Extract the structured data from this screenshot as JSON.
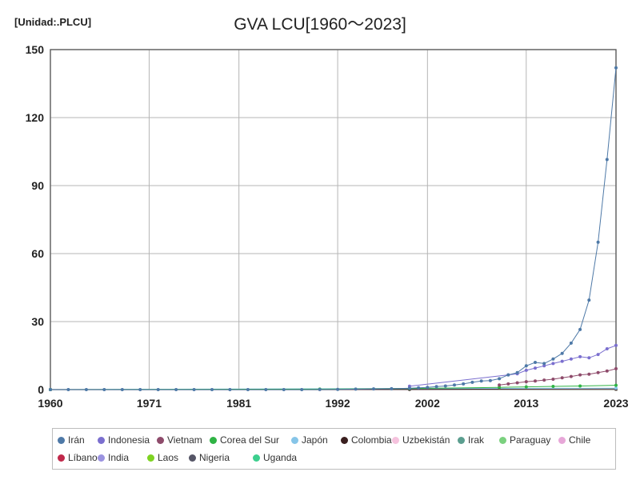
{
  "unit_label": "[Unidad:.PLCU]",
  "chart_data": {
    "type": "line",
    "title": "GVA LCU[1960～2023]",
    "xlabel": "",
    "ylabel": "",
    "xlim": [
      1960,
      2023
    ],
    "ylim": [
      0,
      150
    ],
    "x_ticks": [
      "1960",
      "1971",
      "1981",
      "1992",
      "2002",
      "2013",
      "2023"
    ],
    "y_ticks": [
      "0",
      "30",
      "60",
      "90",
      "120",
      "150"
    ],
    "grid": true,
    "legend_position": "bottom",
    "series": [
      {
        "name": "Irán",
        "color": "#4e79a7",
        "x": [
          1960,
          1962,
          1964,
          1966,
          1968,
          1970,
          1972,
          1974,
          1976,
          1978,
          1980,
          1982,
          1984,
          1986,
          1988,
          1990,
          1992,
          1994,
          1996,
          1998,
          2000,
          2001,
          2002,
          2003,
          2004,
          2005,
          2006,
          2007,
          2008,
          2009,
          2010,
          2011,
          2012,
          2013,
          2014,
          2015,
          2016,
          2017,
          2018,
          2019,
          2020,
          2021,
          2022,
          2023
        ],
        "values": [
          0,
          0,
          0,
          0,
          0,
          0,
          0,
          0,
          0,
          0,
          0,
          0,
          0,
          0,
          0,
          0.05,
          0.1,
          0.2,
          0.3,
          0.4,
          0.6,
          0.8,
          1.0,
          1.3,
          1.6,
          2.0,
          2.5,
          3.2,
          3.8,
          4.0,
          4.8,
          6.5,
          7.5,
          10.5,
          12.0,
          11.5,
          13.5,
          16.0,
          20.5,
          26.5,
          39.5,
          65.0,
          101.5,
          142.0
        ]
      },
      {
        "name": "Indonesia",
        "color": "#7b6fcf",
        "x": [
          2000,
          2011,
          2012,
          2013,
          2014,
          2015,
          2016,
          2017,
          2018,
          2019,
          2020,
          2021,
          2022,
          2023
        ],
        "values": [
          1.5,
          6.5,
          7.0,
          8.5,
          9.5,
          10.5,
          11.5,
          12.5,
          13.5,
          14.5,
          14.0,
          15.5,
          18.0,
          19.5
        ]
      },
      {
        "name": "Vietnam",
        "color": "#8e4b6b",
        "x": [
          2010,
          2011,
          2012,
          2013,
          2014,
          2015,
          2016,
          2017,
          2018,
          2019,
          2020,
          2021,
          2022,
          2023
        ],
        "values": [
          2.0,
          2.5,
          3.0,
          3.5,
          3.8,
          4.2,
          4.6,
          5.2,
          5.8,
          6.5,
          6.8,
          7.5,
          8.2,
          9.2
        ]
      },
      {
        "name": "Corea del Sur",
        "color": "#2fb344",
        "x": [
          1960,
          1990,
          2000,
          2010,
          2013,
          2016,
          2019,
          2023
        ],
        "values": [
          0,
          0.2,
          0.5,
          1.0,
          1.2,
          1.4,
          1.6,
          1.9
        ]
      },
      {
        "name": "Japón",
        "color": "#86c5e8",
        "x": [
          1960,
          2000,
          2023
        ],
        "values": [
          0,
          0.5,
          0.6
        ]
      },
      {
        "name": "Colombia",
        "color": "#3a1f1f",
        "x": [
          1960,
          2000,
          2023
        ],
        "values": [
          0,
          0.1,
          0.3
        ]
      },
      {
        "name": "Uzbekistán",
        "color": "#f5c2dd",
        "x": [
          1990,
          2023
        ],
        "values": [
          0,
          0.2
        ]
      },
      {
        "name": "Irak",
        "color": "#5b9e8f",
        "x": [
          1960,
          2023
        ],
        "values": [
          0,
          0.2
        ]
      },
      {
        "name": "Paraguay",
        "color": "#7bd17f",
        "x": [
          1960,
          2023
        ],
        "values": [
          0,
          0.1
        ]
      },
      {
        "name": "Chile",
        "color": "#e7a7d8",
        "x": [
          1960,
          2023
        ],
        "values": [
          0,
          0.05
        ]
      },
      {
        "name": "Líbano",
        "color": "#c0284a",
        "x": [
          1960,
          2023
        ],
        "values": [
          0,
          0.05
        ]
      },
      {
        "name": "India",
        "color": "#9b93e0",
        "x": [
          1960,
          2023
        ],
        "values": [
          0,
          0.05
        ]
      },
      {
        "name": "Laos",
        "color": "#7ed321",
        "x": [
          1960,
          2023
        ],
        "values": [
          0,
          0.05
        ]
      },
      {
        "name": "Nigeria",
        "color": "#555566",
        "x": [
          1960,
          2023
        ],
        "values": [
          0,
          0.02
        ]
      },
      {
        "name": "Uganda",
        "color": "#3ccf8e",
        "x": [
          1960,
          2023
        ],
        "values": [
          0,
          0.02
        ]
      }
    ]
  }
}
